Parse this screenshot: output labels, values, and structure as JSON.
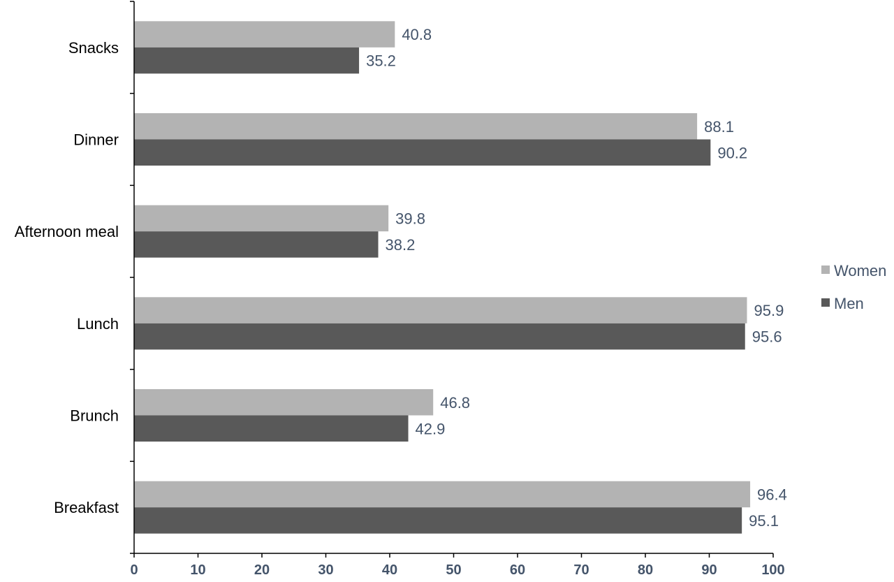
{
  "chart_data": {
    "type": "bar",
    "orientation": "horizontal",
    "categories": [
      "Breakfast",
      "Brunch",
      "Lunch",
      "Afternoon meal",
      "Dinner",
      "Snacks"
    ],
    "series": [
      {
        "name": "Women",
        "color": "#b3b3b3",
        "values": [
          96.4,
          46.8,
          95.9,
          39.8,
          88.1,
          40.8
        ]
      },
      {
        "name": "Men",
        "color": "#595959",
        "values": [
          95.1,
          42.9,
          95.6,
          38.2,
          90.2,
          35.2
        ]
      }
    ],
    "title": "",
    "xlabel": "",
    "ylabel": "",
    "xlim": [
      0,
      100
    ],
    "xticks": [
      0,
      10,
      20,
      30,
      40,
      50,
      60,
      70,
      80,
      90,
      100
    ],
    "grid": false,
    "legend": "right"
  }
}
